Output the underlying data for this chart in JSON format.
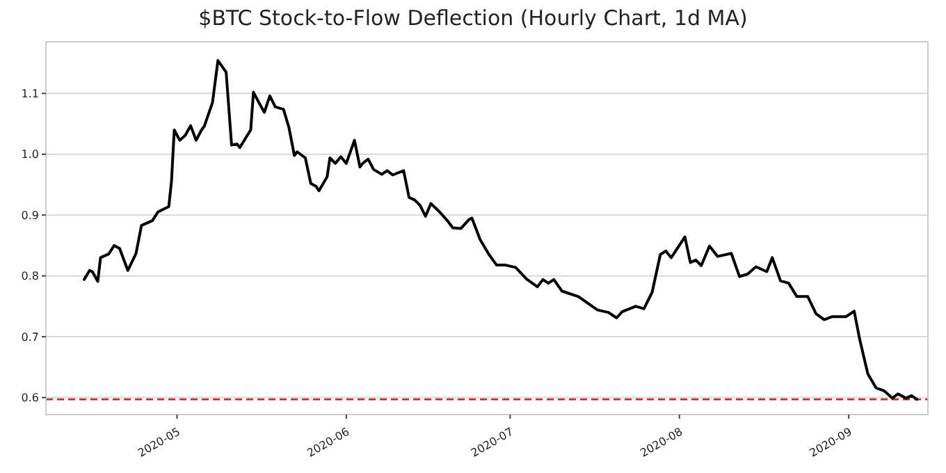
{
  "chart_data": {
    "type": "line",
    "title": "$BTC Stock-to-Flow Deflection (Hourly Chart, 1d MA)",
    "xlim": [
      "2020-04-07",
      "2020-09-15T12:00"
    ],
    "xticks": [
      "2020-05",
      "2020-06",
      "2020-07",
      "2020-08",
      "2020-09"
    ],
    "ylim": [
      0.572,
      1.185
    ],
    "yticks": [
      0.6,
      0.7,
      0.8,
      0.9,
      {
        "value": 1,
        "label": "1.0"
      },
      1.1
    ],
    "grid": "y",
    "line_style": "solid",
    "ref_lines": [
      {
        "axis": "y",
        "value": 0.597,
        "color": "#d62728",
        "line_style": "dashed"
      }
    ],
    "series": [
      {
        "color": "#000000",
        "x": [
          "2020-04-14",
          "2020-04-15",
          "2020-04-15T12:00",
          "2020-04-16T12:00",
          "2020-04-17",
          "2020-04-18T12:00",
          "2020-04-19T12:00",
          "2020-04-20T12:00",
          "2020-04-22",
          "2020-04-23T12:00",
          "2020-04-24T12:00",
          "2020-04-26T12:00",
          "2020-04-27T12:00",
          "2020-04-29T12:00",
          "2020-04-30",
          "2020-04-30T12:00",
          "2020-05-01T12:00",
          "2020-05-02T12:00",
          "2020-05-03T12:00",
          "2020-05-04T12:00",
          "2020-05-05T12:00",
          "2020-05-06",
          "2020-05-07T12:00",
          "2020-05-08T12:00",
          "2020-05-10",
          "2020-05-11",
          "2020-05-12",
          "2020-05-12T12:00",
          "2020-05-14T12:00",
          "2020-05-15",
          "2020-05-16",
          "2020-05-17",
          "2020-05-18",
          "2020-05-19",
          "2020-05-20T12:00",
          "2020-05-21T12:00",
          "2020-05-22T12:00",
          "2020-05-23",
          "2020-05-24T12:00",
          "2020-05-25T12:00",
          "2020-05-26T12:00",
          "2020-05-27",
          "2020-05-28T12:00",
          "2020-05-29",
          "2020-05-30",
          "2020-05-31",
          "2020-06-01",
          "2020-06-02T12:00",
          "2020-06-03T12:00",
          "2020-06-04",
          "2020-06-05",
          "2020-06-06",
          "2020-06-07T12:00",
          "2020-06-08T12:00",
          "2020-06-09T12:00",
          "2020-06-11T12:00",
          "2020-06-12T12:00",
          "2020-06-13T12:00",
          "2020-06-14T12:00",
          "2020-06-15T12:00",
          "2020-06-16T12:00",
          "2020-06-18",
          "2020-06-19T12:00",
          "2020-06-20T12:00",
          "2020-06-22",
          "2020-06-23T12:00",
          "2020-06-24",
          "2020-06-25T12:00",
          "2020-06-27",
          "2020-06-28T12:00",
          "2020-06-30",
          "2020-07-02",
          "2020-07-04",
          "2020-07-06",
          "2020-07-07",
          "2020-07-08",
          "2020-07-09",
          "2020-07-10T12:00",
          "2020-07-13T12:00",
          "2020-07-17",
          "2020-07-19",
          "2020-07-20T12:00",
          "2020-07-21T12:00",
          "2020-07-24",
          "2020-07-25T12:00",
          "2020-07-27",
          "2020-07-28T12:00",
          "2020-07-29T12:00",
          "2020-07-30T12:00",
          "2020-08-02",
          "2020-08-03",
          "2020-08-04",
          "2020-08-05",
          "2020-08-06T12:00",
          "2020-08-08",
          "2020-08-10T12:00",
          "2020-08-12",
          "2020-08-13T12:00",
          "2020-08-15",
          "2020-08-17",
          "2020-08-18",
          "2020-08-19T12:00",
          "2020-08-21",
          "2020-08-22T12:00",
          "2020-08-24T12:00",
          "2020-08-26",
          "2020-08-27T12:00",
          "2020-08-29",
          "2020-08-31T12:00",
          "2020-09-02",
          "2020-09-03",
          "2020-09-04T12:00",
          "2020-09-06",
          "2020-09-07T12:00",
          "2020-09-09",
          "2020-09-10",
          "2020-09-11T12:00",
          "2020-09-12T12:00",
          "2020-09-13T12:00"
        ],
        "values": [
          0.794,
          0.809,
          0.807,
          0.791,
          0.83,
          0.836,
          0.85,
          0.845,
          0.809,
          0.837,
          0.883,
          0.891,
          0.905,
          0.914,
          0.956,
          1.04,
          1.023,
          1.031,
          1.047,
          1.023,
          1.04,
          1.046,
          1.085,
          1.154,
          1.135,
          1.015,
          1.017,
          1.011,
          1.04,
          1.102,
          1.085,
          1.069,
          1.096,
          1.078,
          1.074,
          1.044,
          0.998,
          1.004,
          0.994,
          0.952,
          0.947,
          0.94,
          0.963,
          0.994,
          0.985,
          0.996,
          0.985,
          1.023,
          0.979,
          0.985,
          0.992,
          0.975,
          0.967,
          0.973,
          0.966,
          0.973,
          0.929,
          0.925,
          0.916,
          0.898,
          0.919,
          0.906,
          0.891,
          0.879,
          0.878,
          0.893,
          0.895,
          0.86,
          0.837,
          0.818,
          0.818,
          0.814,
          0.795,
          0.782,
          0.794,
          0.788,
          0.794,
          0.775,
          0.766,
          0.744,
          0.74,
          0.731,
          0.741,
          0.75,
          0.746,
          0.773,
          0.835,
          0.841,
          0.83,
          0.864,
          0.822,
          0.826,
          0.817,
          0.849,
          0.832,
          0.837,
          0.799,
          0.803,
          0.815,
          0.807,
          0.83,
          0.792,
          0.788,
          0.766,
          0.766,
          0.738,
          0.728,
          0.733,
          0.733,
          0.742,
          0.696,
          0.639,
          0.616,
          0.611,
          0.599,
          0.606,
          0.599,
          0.603,
          0.597
        ]
      }
    ]
  }
}
